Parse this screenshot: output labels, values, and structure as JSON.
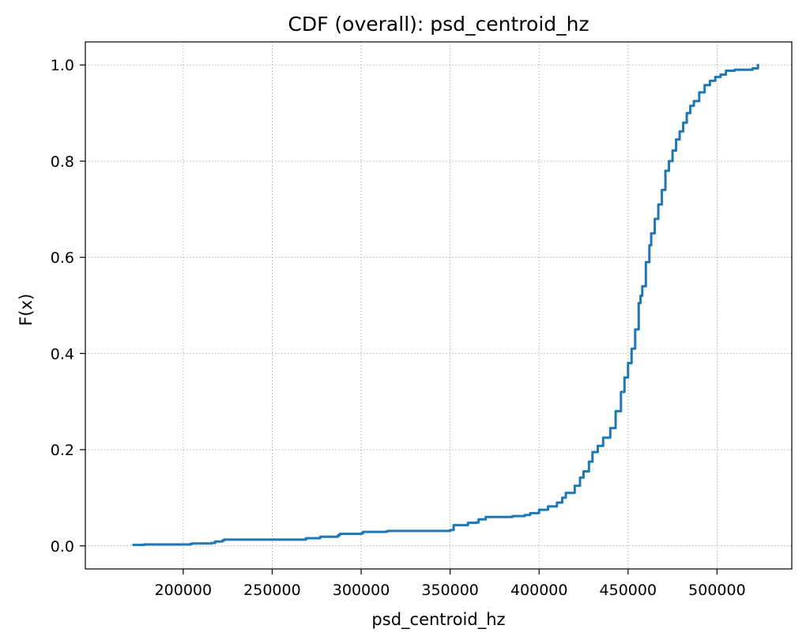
{
  "chart_data": {
    "type": "line",
    "title": "CDF (overall): psd_centroid_hz",
    "xlabel": "psd_centroid_hz",
    "ylabel": "F(x)",
    "xlim": [
      145000,
      542000
    ],
    "ylim": [
      -0.048,
      1.048
    ],
    "xticks": [
      200000,
      250000,
      300000,
      350000,
      400000,
      450000,
      500000
    ],
    "xtick_labels": [
      "200000",
      "250000",
      "300000",
      "350000",
      "400000",
      "450000",
      "500000"
    ],
    "yticks": [
      0.0,
      0.2,
      0.4,
      0.6,
      0.8,
      1.0
    ],
    "ytick_labels": [
      "0.0",
      "0.2",
      "0.4",
      "0.6",
      "0.8",
      "1.0"
    ],
    "grid": true,
    "line_color": "#1f77b4",
    "series": [
      {
        "x": [
          172000,
          178000,
          190000,
          204000,
          205000,
          216000,
          218000,
          222000,
          223000,
          240000,
          260000,
          268000,
          269000,
          276000,
          277000,
          287000,
          288000,
          300000,
          301000,
          314000,
          315000,
          330000,
          345000,
          350000,
          352000,
          360000,
          365000,
          366000,
          370000,
          385000,
          392000,
          395000,
          400000,
          405000,
          410000,
          413000,
          415000,
          420000,
          423000,
          425000,
          428000,
          430000,
          433000,
          436000,
          440000,
          443000,
          446000,
          448000,
          450000,
          452000,
          454000,
          456000,
          457000,
          458000,
          460000,
          462000,
          463000,
          465000,
          467000,
          469000,
          471000,
          473000,
          475000,
          477000,
          479000,
          481000,
          483000,
          485000,
          487000,
          490000,
          493000,
          496000,
          499000,
          502000,
          505000,
          510000,
          515000,
          520000,
          523000
        ],
        "y": [
          0.002,
          0.003,
          0.003,
          0.004,
          0.005,
          0.006,
          0.009,
          0.011,
          0.013,
          0.013,
          0.013,
          0.013,
          0.016,
          0.016,
          0.019,
          0.022,
          0.025,
          0.026,
          0.029,
          0.03,
          0.031,
          0.031,
          0.031,
          0.033,
          0.043,
          0.048,
          0.049,
          0.055,
          0.06,
          0.062,
          0.064,
          0.068,
          0.075,
          0.082,
          0.09,
          0.1,
          0.11,
          0.125,
          0.142,
          0.155,
          0.175,
          0.195,
          0.208,
          0.225,
          0.245,
          0.28,
          0.32,
          0.35,
          0.38,
          0.41,
          0.45,
          0.505,
          0.52,
          0.54,
          0.59,
          0.625,
          0.65,
          0.68,
          0.71,
          0.74,
          0.78,
          0.8,
          0.822,
          0.845,
          0.862,
          0.88,
          0.9,
          0.915,
          0.925,
          0.943,
          0.958,
          0.967,
          0.975,
          0.98,
          0.988,
          0.99,
          0.99,
          0.993,
          1.0
        ]
      }
    ]
  }
}
